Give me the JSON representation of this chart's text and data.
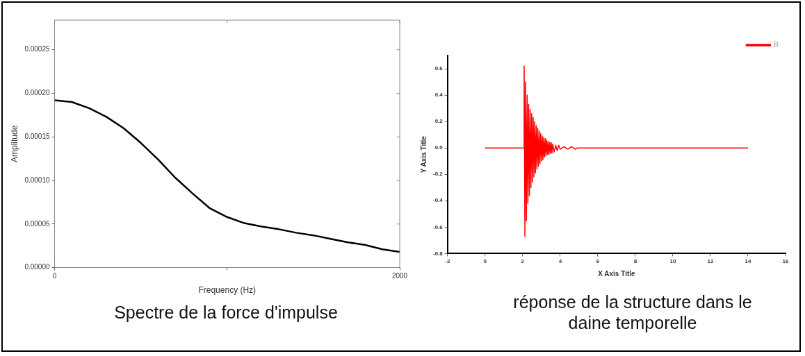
{
  "chart_data": [
    {
      "type": "line",
      "xlabel": "Frequency (Hz)",
      "ylabel": "Amplitude",
      "annotations": [
        "Spectre de la force d'impulse"
      ],
      "x": [
        0,
        100,
        200,
        300,
        400,
        500,
        600,
        700,
        800,
        900,
        1000,
        1100,
        1200,
        1300,
        1400,
        1500,
        1600,
        1700,
        1800,
        1900,
        2000
      ],
      "series": [
        {
          "color": "#000000",
          "values": [
            0.000192,
            0.00019,
            0.000183,
            0.000173,
            0.00016,
            0.000143,
            0.000124,
            0.000103,
            8.5e-05,
            6.8e-05,
            5.8e-05,
            5.1e-05,
            4.7e-05,
            4.4e-05,
            4e-05,
            3.7e-05,
            3.3e-05,
            2.9e-05,
            2.6e-05,
            2.1e-05,
            1.8e-05
          ]
        }
      ],
      "xlim": [
        0,
        2000
      ],
      "xticks": [
        0,
        {
          "value": 1000,
          "label": null
        },
        2000
      ],
      "ylim": [
        0,
        0.000284
      ],
      "yticks": [
        {
          "value": 0,
          "label": "0.00000"
        },
        {
          "value": 5e-05,
          "label": "0.00005"
        },
        {
          "value": 0.0001,
          "label": "0.00010"
        },
        {
          "value": 0.00015,
          "label": "0.00015"
        },
        {
          "value": 0.0002,
          "label": "0.00020"
        },
        {
          "value": 0.00025,
          "label": "0.00025"
        }
      ],
      "grid": false,
      "legend": false,
      "marker": "none",
      "line_style": "solid"
    },
    {
      "type": "line",
      "xlabel": "X Axis Title",
      "ylabel": "Y Axis Title",
      "annotations": [
        "réponse de la structure dans le daine temporelle"
      ],
      "x": [
        0,
        2.06,
        2.08,
        2.12,
        2.16,
        2.2,
        2.24,
        2.28,
        2.32,
        2.36,
        2.4,
        2.44,
        2.48,
        2.52,
        2.56,
        2.6,
        2.64,
        2.68,
        2.72,
        2.76,
        2.8,
        2.84,
        2.88,
        2.92,
        2.96,
        3.0,
        3.04,
        3.08,
        3.12,
        3.16,
        3.2,
        3.24,
        3.28,
        3.32,
        3.36,
        3.4,
        3.44,
        3.48,
        3.52,
        3.56,
        3.6,
        3.68,
        3.76,
        3.84,
        3.92,
        4.0,
        4.2,
        4.4,
        4.6,
        4.8,
        4.9,
        14
      ],
      "series": [
        {
          "name": "B",
          "color": "#ff0000",
          "values": [
            0,
            0,
            0.62,
            -0.67,
            0.5,
            -0.55,
            0.4,
            -0.42,
            0.33,
            -0.36,
            0.29,
            -0.3,
            0.26,
            -0.26,
            0.23,
            -0.22,
            0.2,
            -0.19,
            0.17,
            -0.16,
            0.15,
            -0.14,
            0.13,
            -0.12,
            0.11,
            -0.1,
            0.09,
            -0.09,
            0.08,
            -0.07,
            0.07,
            -0.06,
            0.06,
            -0.05,
            0.05,
            -0.05,
            0.04,
            -0.04,
            0.04,
            -0.04,
            0.03,
            -0.03,
            0.02,
            -0.02,
            0.02,
            -0.01,
            0.01,
            -0.01,
            0.01,
            -0.01,
            0,
            0
          ]
        }
      ],
      "xlim": [
        -2,
        16
      ],
      "xticks": [
        -2,
        0,
        2,
        4,
        6,
        8,
        10,
        12,
        14,
        16
      ],
      "ylim": [
        -0.8,
        0.7
      ],
      "yticks": [
        {
          "value": -0.8,
          "label": "-0.8"
        },
        {
          "value": -0.6,
          "label": "-0.6"
        },
        {
          "value": -0.4,
          "label": "-0.4"
        },
        {
          "value": -0.2,
          "label": "-0.2"
        },
        {
          "value": 0,
          "label": "0.0"
        },
        {
          "value": 0.2,
          "label": "0.2"
        },
        {
          "value": 0.4,
          "label": "0.4"
        },
        {
          "value": 0.6,
          "label": "0.6"
        }
      ],
      "grid": false,
      "legend": "top right",
      "marker": "none",
      "line_style": "solid"
    }
  ]
}
